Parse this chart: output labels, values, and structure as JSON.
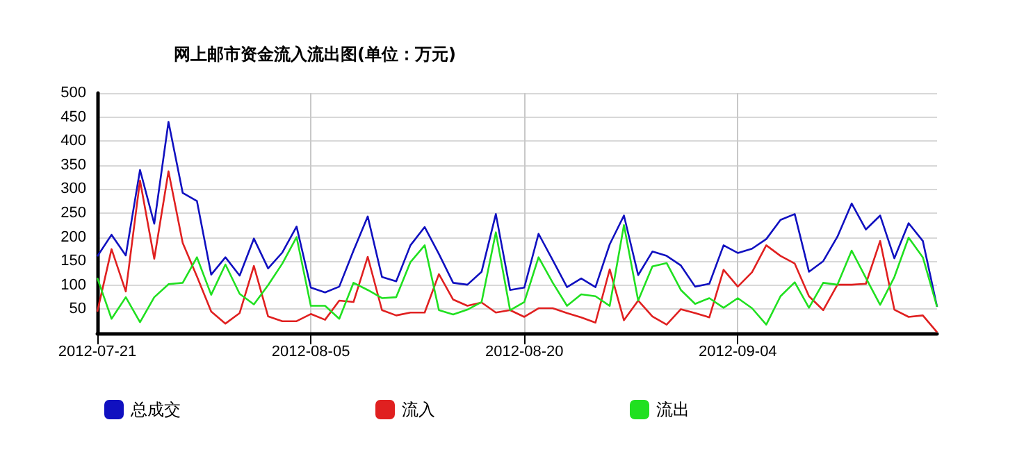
{
  "chart_data": {
    "type": "line",
    "title": "网上邮市资金流入流出图(单位：万元)",
    "x": [
      "2012-07-21",
      "2012-07-22",
      "2012-07-23",
      "2012-07-24",
      "2012-07-25",
      "2012-07-26",
      "2012-07-27",
      "2012-07-28",
      "2012-07-29",
      "2012-07-30",
      "2012-07-31",
      "2012-08-01",
      "2012-08-02",
      "2012-08-03",
      "2012-08-04",
      "2012-08-05",
      "2012-08-06",
      "2012-08-07",
      "2012-08-08",
      "2012-08-09",
      "2012-08-10",
      "2012-08-11",
      "2012-08-12",
      "2012-08-13",
      "2012-08-14",
      "2012-08-15",
      "2012-08-16",
      "2012-08-17",
      "2012-08-18",
      "2012-08-19",
      "2012-08-20",
      "2012-08-21",
      "2012-08-22",
      "2012-08-23",
      "2012-08-24",
      "2012-08-25",
      "2012-08-26",
      "2012-08-27",
      "2012-08-28",
      "2012-08-29",
      "2012-08-30",
      "2012-08-31",
      "2012-09-01",
      "2012-09-02",
      "2012-09-03",
      "2012-09-04",
      "2012-09-05",
      "2012-09-06",
      "2012-09-07",
      "2012-09-08",
      "2012-09-09",
      "2012-09-10",
      "2012-09-11",
      "2012-09-12",
      "2012-09-13",
      "2012-09-14",
      "2012-09-15",
      "2012-09-16",
      "2012-09-17",
      "2012-09-18"
    ],
    "series": [
      {
        "name": "总成交",
        "color": "#1010c0",
        "values": [
          160,
          205,
          162,
          340,
          228,
          440,
          292,
          275,
          122,
          158,
          120,
          197,
          135,
          168,
          222,
          95,
          85,
          97,
          172,
          243,
          117,
          108,
          183,
          221,
          165,
          105,
          101,
          128,
          248,
          90,
          95,
          207,
          152,
          96,
          114,
          96,
          185,
          245,
          121,
          170,
          161,
          141,
          97,
          103,
          183,
          167,
          176,
          196,
          236,
          248,
          128,
          150,
          201,
          270,
          216,
          245,
          156,
          229,
          192,
          55
        ]
      },
      {
        "name": "流入",
        "color": "#e02020",
        "values": [
          45,
          175,
          87,
          318,
          155,
          337,
          188,
          118,
          45,
          20,
          42,
          140,
          35,
          25,
          25,
          40,
          28,
          68,
          65,
          159,
          48,
          37,
          43,
          43,
          123,
          70,
          57,
          64,
          43,
          48,
          34,
          52,
          52,
          42,
          33,
          22,
          133,
          27,
          68,
          35,
          18,
          50,
          42,
          33,
          132,
          97,
          127,
          183,
          161,
          145,
          77,
          48,
          101,
          101,
          103,
          192,
          49,
          34,
          37,
          2
        ]
      },
      {
        "name": "流出",
        "color": "#20e020",
        "values": [
          115,
          30,
          75,
          23,
          75,
          102,
          105,
          158,
          80,
          143,
          82,
          60,
          100,
          145,
          200,
          57,
          57,
          30,
          105,
          90,
          73,
          75,
          148,
          183,
          48,
          39,
          49,
          65,
          210,
          48,
          65,
          158,
          105,
          57,
          81,
          77,
          57,
          225,
          68,
          139,
          146,
          90,
          61,
          73,
          53,
          73,
          52,
          18,
          77,
          106,
          53,
          105,
          101,
          172,
          115,
          59,
          117,
          199,
          158,
          55
        ]
      }
    ],
    "xlim": [
      "2012-07-21",
      "2012-09-18"
    ],
    "xticks": [
      "2012-07-21",
      "2012-08-05",
      "2012-08-20",
      "2012-09-04"
    ],
    "ylim": [
      0,
      500
    ],
    "yticks": [
      50,
      100,
      150,
      200,
      250,
      300,
      350,
      400,
      450,
      500
    ],
    "grid": true,
    "legend": "bottom left",
    "marker": "none",
    "line_style": "solid"
  }
}
